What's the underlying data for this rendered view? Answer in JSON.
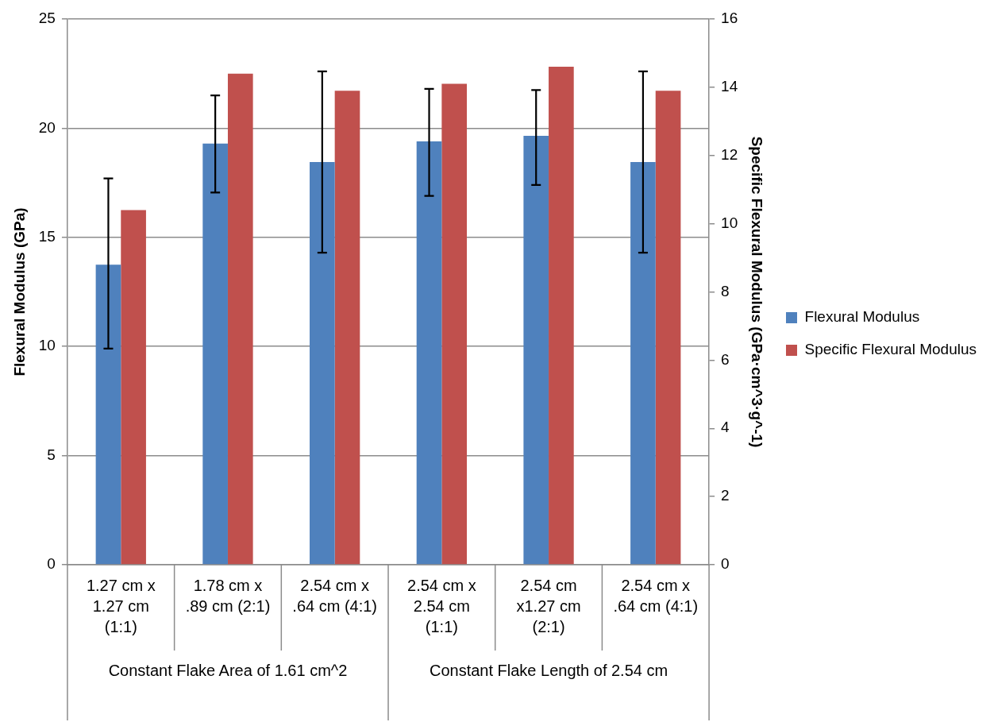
{
  "chart_data": {
    "type": "bar",
    "categories": [
      "1.27 cm x 1.27 cm (1:1)",
      "1.78 cm x .89 cm (2:1)",
      "2.54 cm x .64 cm (4:1)",
      "2.54 cm x 2.54 cm (1:1)",
      "2.54 cm x1.27 cm (2:1)",
      "2.54 cm x .64 cm (4:1)"
    ],
    "series": [
      {
        "name": "Flexural Modulus",
        "color": "#4f81bd",
        "values": [
          13.75,
          19.3,
          18.45,
          19.4,
          19.65,
          18.45
        ],
        "errors": [
          [
            9.9,
            17.7
          ],
          [
            17.05,
            21.5
          ],
          [
            14.3,
            22.6
          ],
          [
            16.9,
            21.8
          ],
          [
            17.4,
            21.75
          ],
          [
            14.3,
            22.6
          ]
        ]
      },
      {
        "name": "Specific Flexural Modulus",
        "color": "#c0504d",
        "axis": "y2",
        "values": [
          10.4,
          14.4,
          13.9,
          14.1,
          14.6,
          13.9
        ]
      }
    ],
    "ylabel": "Flexural Modulus (GPa)",
    "y2label": "Specific Flexural Modulus (GPa·cm^3·g^-1)",
    "ylim": [
      0,
      25
    ],
    "yticks": [
      0,
      5,
      10,
      15,
      20,
      25
    ],
    "y2lim": [
      0,
      16
    ],
    "y2ticks": [
      0,
      2,
      4,
      6,
      8,
      10,
      12,
      14,
      16
    ],
    "annotations": [
      "Constant Flake Area of 1.61 cm^2",
      "Constant Flake Length of 2.54 cm"
    ],
    "grid": "y",
    "legend": "right"
  }
}
